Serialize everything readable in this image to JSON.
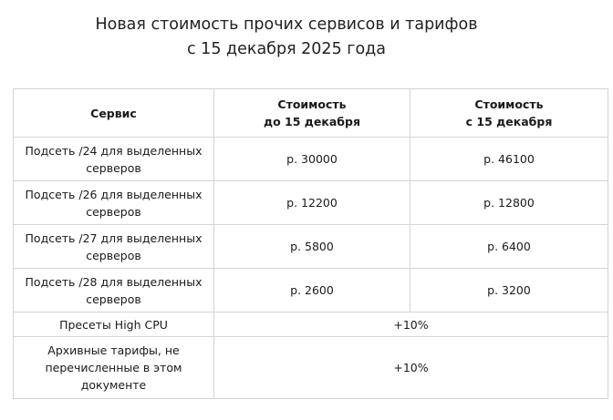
{
  "title": {
    "line1": "Новая стоимость прочих сервисов и тарифов",
    "line2": "с 15 декабря 2025 года"
  },
  "table": {
    "headers": {
      "service": "Сервис",
      "before_line1": "Стоимость",
      "before_line2": "до 15 декабря",
      "after_line1": "Стоимость",
      "after_line2": "с 15 декабря"
    },
    "rows": [
      {
        "service": "Подсеть /24 для выделенных серверов",
        "before": "р. 30000",
        "after": "р. 46100"
      },
      {
        "service": "Подсеть /26 для выделенных серверов",
        "before": "р. 12200",
        "after": "р. 12800"
      },
      {
        "service": "Подсеть /27 для выделенных серверов",
        "before": "р. 5800",
        "after": "р. 6400"
      },
      {
        "service": "Подсеть /28 для выделенных серверов",
        "before": "р. 2600",
        "after": "р. 3200"
      }
    ],
    "merged_rows": [
      {
        "service": "Пресеты High CPU",
        "change": "+10%"
      },
      {
        "service": "Архивные тарифы, не перечисленные в этом документе",
        "change": "+10%"
      }
    ]
  }
}
